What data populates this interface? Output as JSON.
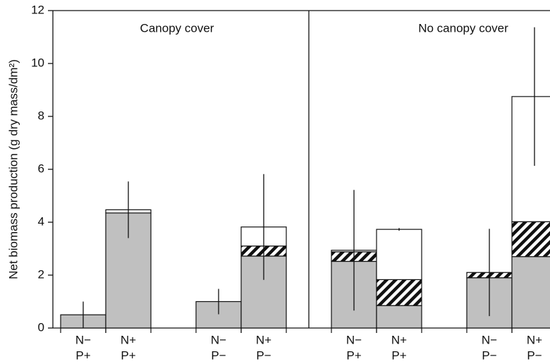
{
  "chart_data": {
    "type": "bar",
    "stacked": true,
    "ylabel": "Net biomass production (g dry mass/dm²)",
    "ylim": [
      0,
      12
    ],
    "yticks": [
      0,
      2,
      4,
      6,
      8,
      10,
      12
    ],
    "panels": [
      {
        "title": "Canopy cover",
        "categories": [
          [
            "N−",
            "P+"
          ],
          [
            "N+",
            "P+"
          ],
          [
            "N−",
            "P−"
          ],
          [
            "N+",
            "P−"
          ]
        ]
      },
      {
        "title": "No canopy cover",
        "categories": [
          [
            "N−",
            "P+"
          ],
          [
            "N+",
            "P+"
          ],
          [
            "N−",
            "P−"
          ],
          [
            "N+",
            "P−"
          ]
        ]
      }
    ],
    "series": [
      {
        "color": "#c0c0c0",
        "values": [
          0.5,
          4.35,
          1.0,
          2.72,
          2.52,
          0.85,
          1.9,
          2.7
        ]
      },
      {
        "color": "#111111",
        "pattern": "hatch",
        "values": [
          0,
          0,
          0,
          0.38,
          0.36,
          0.98,
          0.2,
          1.32
        ]
      },
      {
        "color": "#ffffff",
        "values": [
          0,
          0.12,
          0,
          0.72,
          0.06,
          1.9,
          0,
          4.73
        ]
      }
    ],
    "errors": [
      0.5,
      1.07,
      0.48,
      2.0,
      2.28,
      0.05,
      1.65,
      2.62
    ]
  }
}
